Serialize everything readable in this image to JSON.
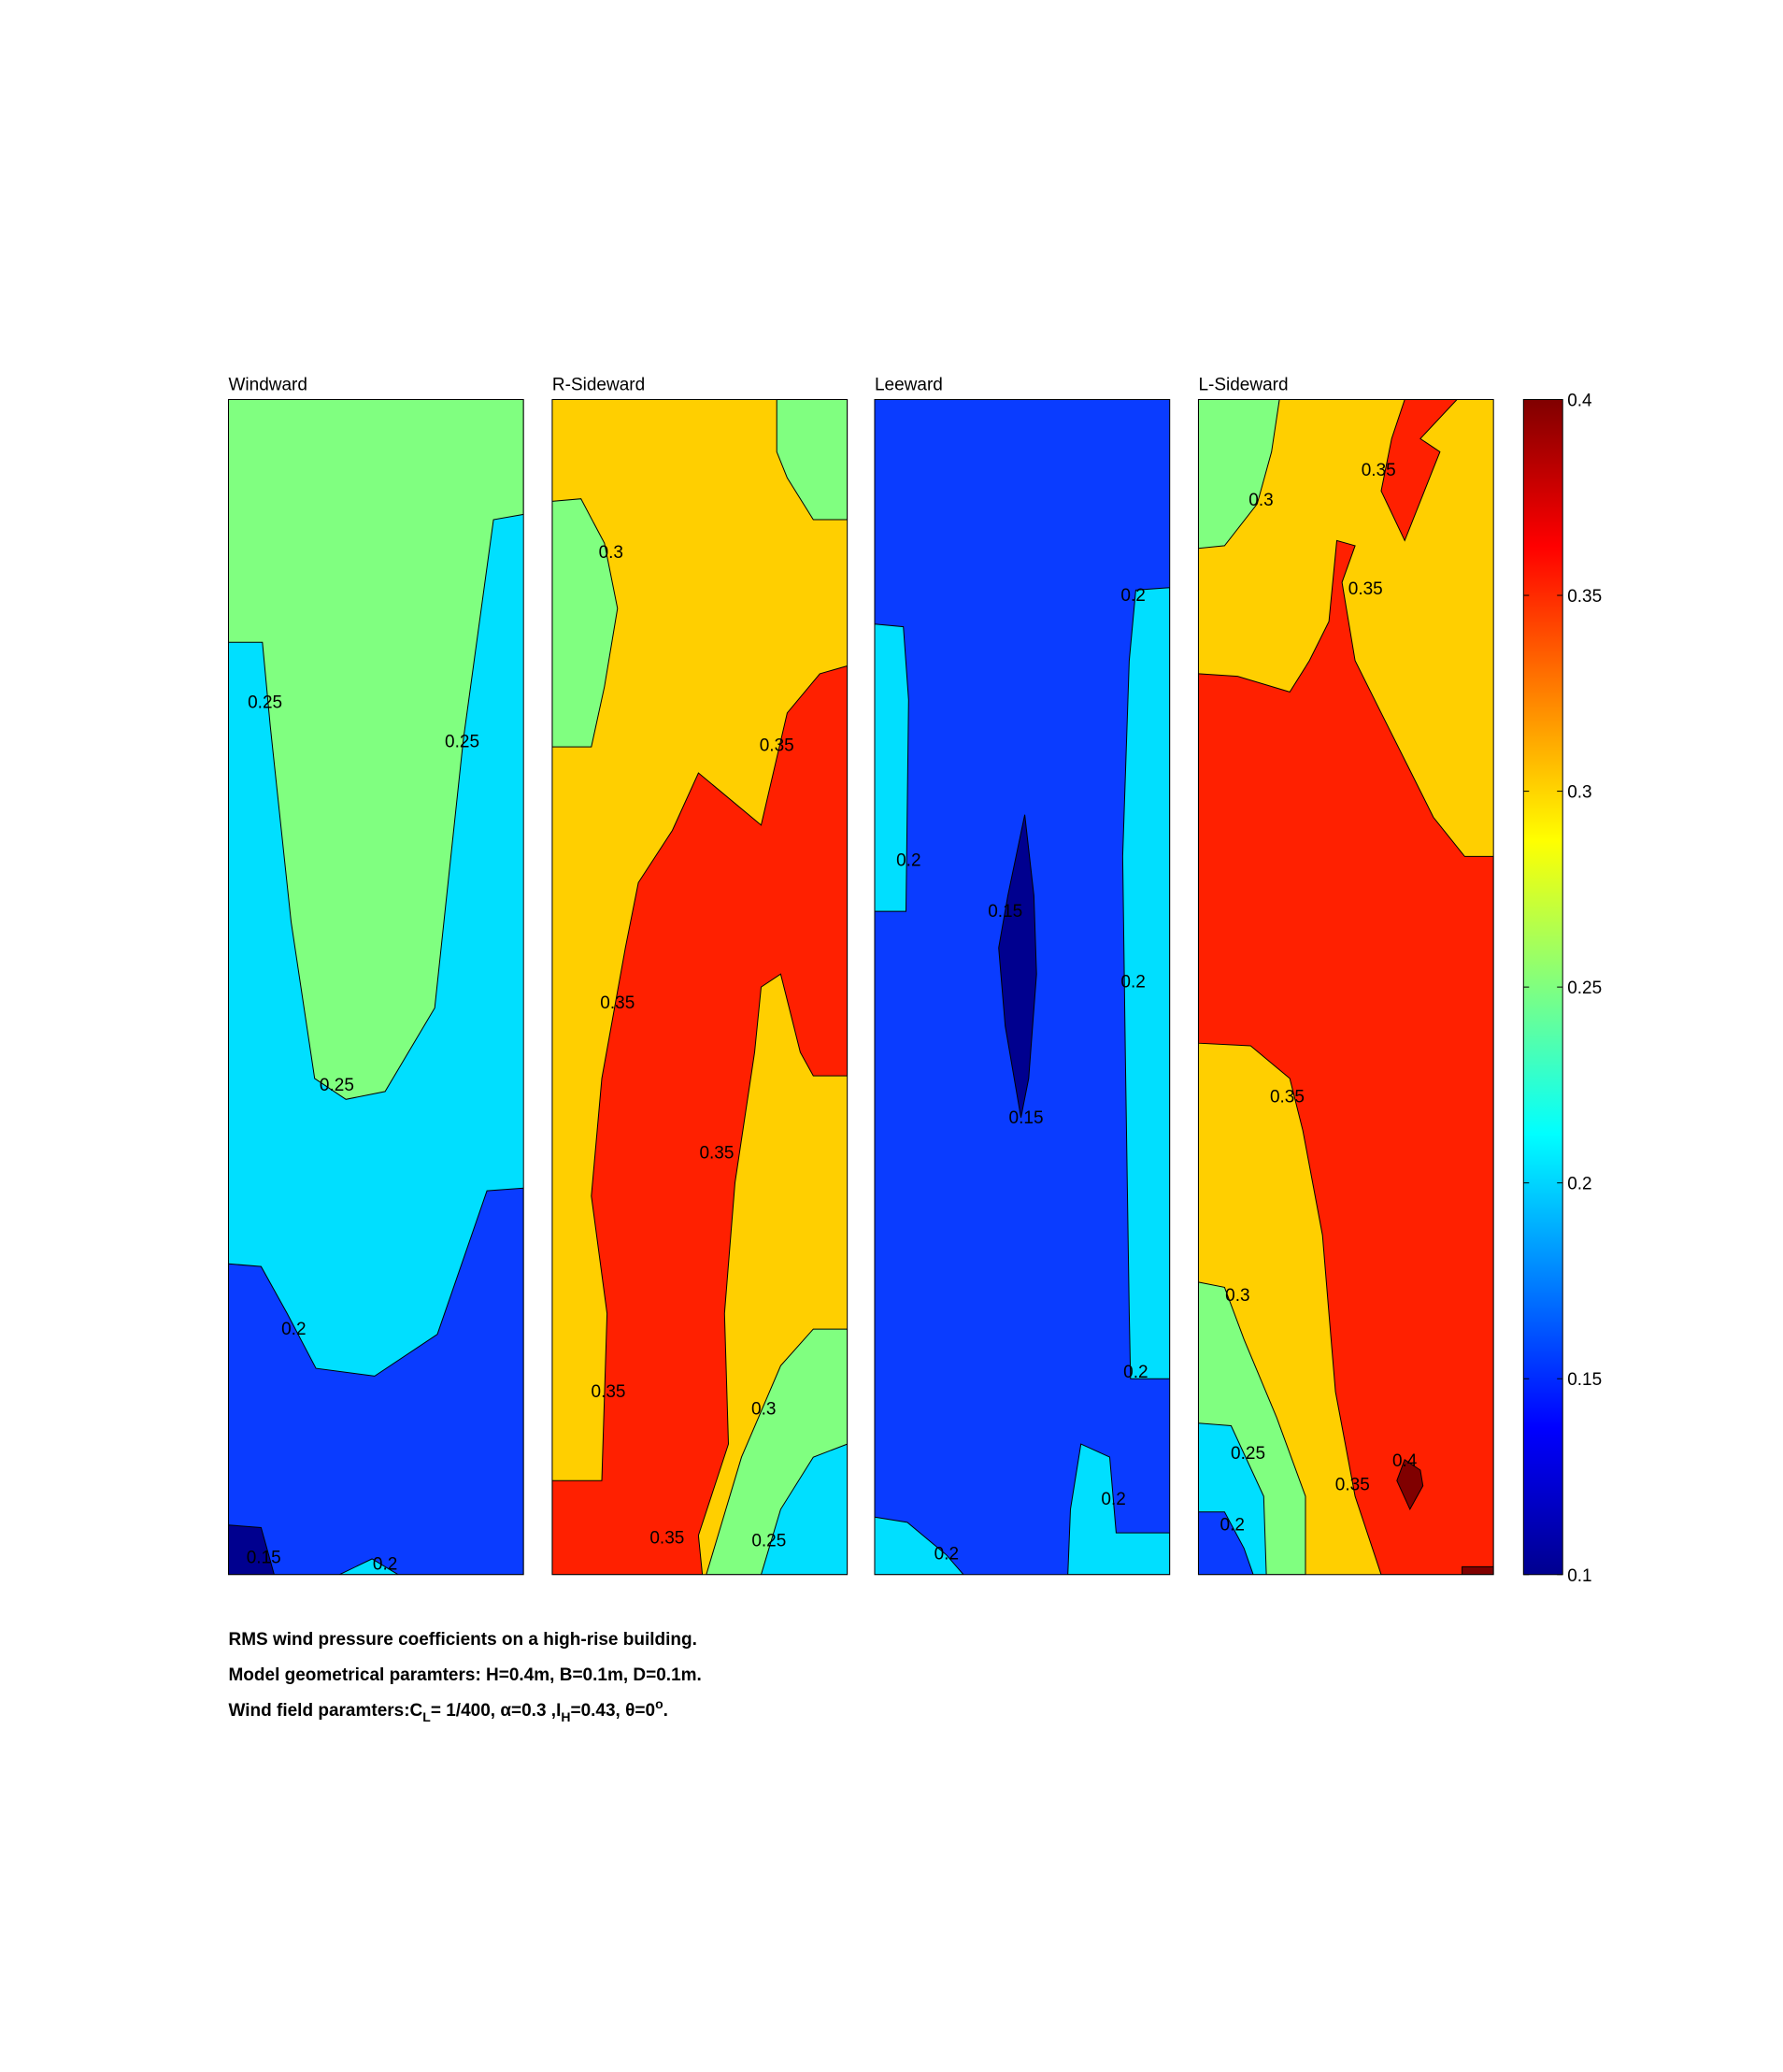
{
  "chart_data": {
    "type": "contour",
    "panels": [
      {
        "title": "Windward",
        "regions": [
          0.2,
          0.25,
          0.15,
          0.1,
          0.2
        ],
        "labels": [
          0.25,
          0.25,
          0.25,
          0.2,
          0.15,
          0.2
        ]
      },
      {
        "title": "R-Sideward",
        "regions": [
          0.3,
          0.25,
          0.25,
          0.35,
          0.25,
          0.2
        ],
        "labels": [
          0.3,
          0.35,
          0.35,
          0.35,
          0.35,
          0.3,
          0.35,
          0.25
        ]
      },
      {
        "title": "Leeward",
        "regions": [
          0.15,
          0.2,
          0.2,
          0.2,
          0.2,
          0.1
        ],
        "labels": [
          0.2,
          0.2,
          0.15,
          0.2,
          0.15,
          0.2,
          0.2,
          0.2
        ]
      },
      {
        "title": "L-Sideward",
        "regions": [
          0.3,
          0.25,
          0.35,
          0.35,
          0.25,
          0.2,
          0.15,
          0.4,
          0.4
        ],
        "labels": [
          0.3,
          0.35,
          0.35,
          0.35,
          0.3,
          0.25,
          0.35,
          0.4,
          0.2
        ]
      }
    ],
    "levels": [
      0.1,
      0.15,
      0.2,
      0.25,
      0.3,
      0.35,
      0.4
    ],
    "level_colors": [
      "#00008f",
      "#0a3cff",
      "#00dfff",
      "#80ff80",
      "#ffcf00",
      "#ff2000",
      "#800000"
    ],
    "colormap": [
      "#00008f",
      "#0000ff",
      "#0080ff",
      "#00ffff",
      "#80ff80",
      "#ffff00",
      "#ff8000",
      "#ff0000",
      "#800000"
    ],
    "ylim": [
      0.1,
      0.4
    ],
    "yticks": [
      0.1,
      0.15,
      0.2,
      0.25,
      0.3,
      0.35,
      0.4
    ],
    "caption": [
      "RMS wind pressure coefficients on a high-rise building.",
      "Model geometrical paramters: H=0.4m, B=0.1m, D=0.1m.",
      [
        "Wind field paramters:C",
        "L",
        "= 1/400, α=0.3 ,I",
        "H",
        "=0.43, θ=0",
        "o",
        "."
      ]
    ]
  }
}
